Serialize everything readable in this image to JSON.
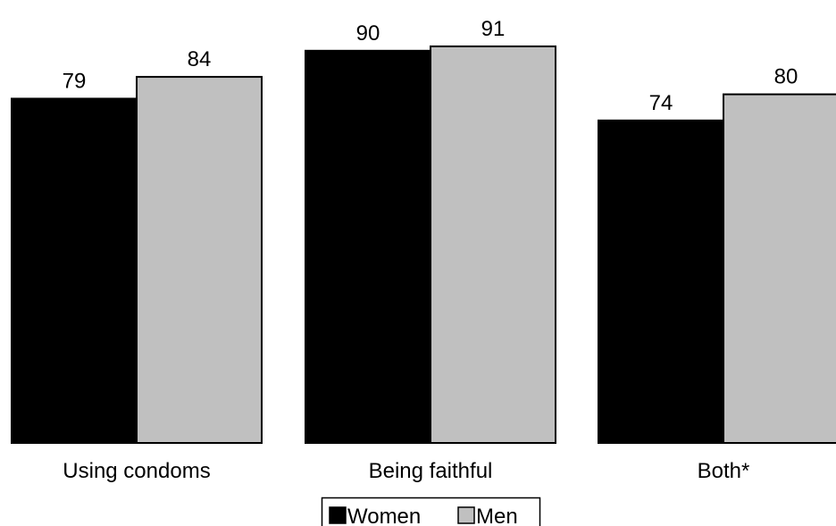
{
  "chart_data": {
    "type": "bar",
    "title": "",
    "xlabel": "",
    "ylabel": "",
    "categories": [
      "Using condoms",
      "Being faithful",
      "Both*"
    ],
    "series": [
      {
        "name": "Women",
        "values": [
          79,
          90,
          74
        ],
        "color": "#000000"
      },
      {
        "name": "Men",
        "values": [
          84,
          91,
          80
        ],
        "color": "#c0c0c0"
      }
    ],
    "ylim": [
      0,
      100
    ],
    "grid": false,
    "legend_position": "bottom-center"
  }
}
